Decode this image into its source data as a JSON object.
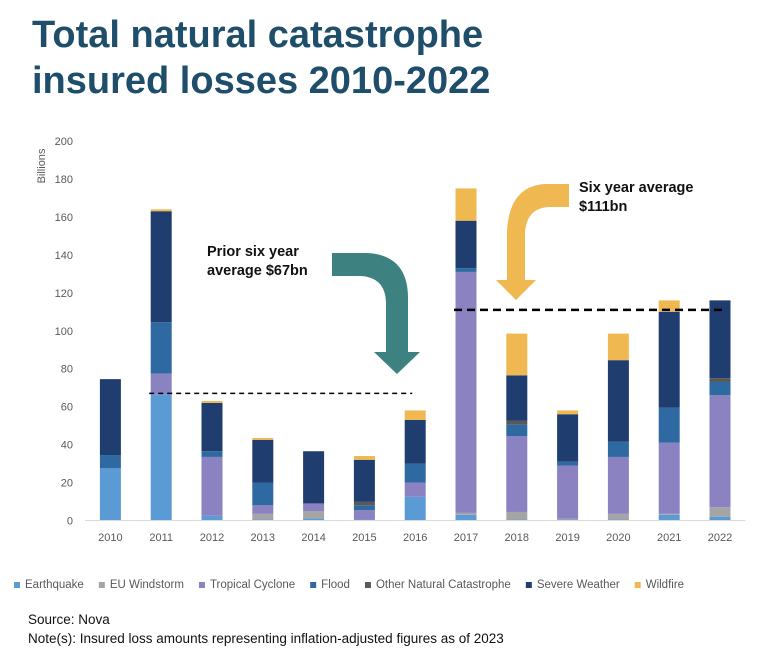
{
  "title_lines": [
    "Total natural catastrophe",
    "insured losses 2010-2022"
  ],
  "source": "Source: Nova",
  "note": "Note(s): Insured loss amounts representing inflation-adjusted figures as of 2023",
  "colors": {
    "title": "#1f4e6b",
    "prior_arrow": "#3e8181",
    "recent_arrow": "#f0b850",
    "average_line": "#000000"
  },
  "chart_data": {
    "type": "bar",
    "stacked": true,
    "ylabel": "Billions",
    "ylim": [
      0,
      200
    ],
    "y_ticks": [
      0,
      20,
      40,
      60,
      80,
      100,
      120,
      140,
      160,
      180,
      200
    ],
    "grid": false,
    "legend_position": "bottom",
    "categories": [
      "2010",
      "2011",
      "2012",
      "2013",
      "2014",
      "2015",
      "2016",
      "2017",
      "2018",
      "2019",
      "2020",
      "2021",
      "2022"
    ],
    "series": [
      {
        "name": "Earthquake",
        "color": "#5b9bd5",
        "values": [
          27.5,
          66.5,
          2.5,
          0.5,
          1,
          0.5,
          12.5,
          3,
          0.5,
          0.5,
          0.5,
          3,
          2
        ]
      },
      {
        "name": "EU Windstorm",
        "color": "#a5a5a5",
        "values": [
          0,
          0,
          0,
          3,
          4,
          0,
          0,
          1,
          4,
          0.5,
          3,
          0.5,
          5
        ]
      },
      {
        "name": "Tropical Cyclone",
        "color": "#8b82c2",
        "values": [
          0,
          11,
          31,
          4.5,
          4,
          5,
          7.5,
          127,
          40,
          28,
          30,
          37.5,
          59
        ]
      },
      {
        "name": "Flood",
        "color": "#2e6aa1",
        "values": [
          7,
          27,
          3,
          12,
          0,
          2.5,
          10,
          2,
          6,
          2,
          8,
          18.5,
          7
        ]
      },
      {
        "name": "Other Natural Catastrophe",
        "color": "#595959",
        "values": [
          0,
          0,
          0,
          0,
          0,
          2,
          0,
          0,
          2,
          0,
          0,
          0,
          2
        ]
      },
      {
        "name": "Severe Weather",
        "color": "#1f3d6e",
        "values": [
          40,
          58.5,
          25.5,
          22.5,
          27.5,
          22,
          23,
          25,
          24,
          25,
          43,
          50.5,
          41
        ]
      },
      {
        "name": "Wildfire",
        "color": "#f0b850",
        "values": [
          0,
          1,
          1,
          1,
          0,
          2,
          5,
          17,
          22,
          2,
          14,
          6,
          0
        ]
      }
    ],
    "averages": [
      {
        "label": "Prior six year average $67bn",
        "value": 67,
        "from": "2011",
        "to": "2016"
      },
      {
        "label": "Six year average $111bn",
        "value": 111,
        "from": "2017",
        "to": "2022"
      }
    ],
    "annotations": [
      {
        "lines": [
          "Prior six year",
          "average $67bn"
        ]
      },
      {
        "lines": [
          "Six year average",
          "$111bn"
        ]
      }
    ]
  }
}
